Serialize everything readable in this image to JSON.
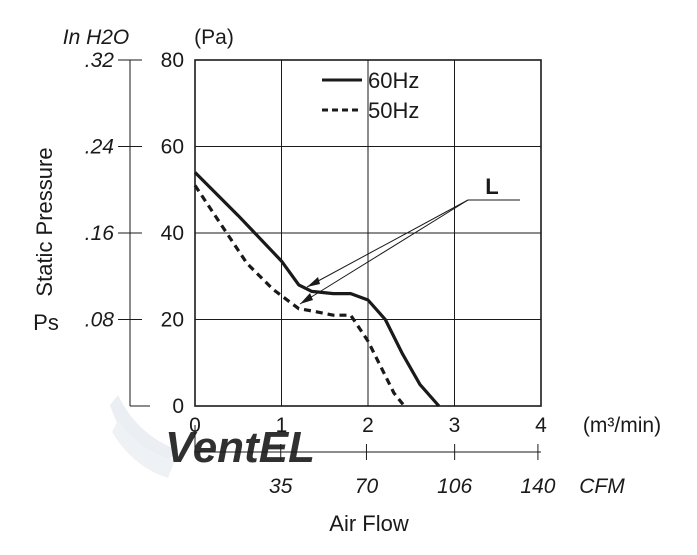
{
  "chart_data": {
    "type": "line",
    "ylabel": "Static Pressure",
    "ylabel_symbol": "Ps",
    "xlabel": "Air Flow",
    "y_unit": "(Pa)",
    "y2_unit": "In H2O",
    "x_unit": "(m³/min)",
    "x2_unit": "CFM",
    "xlim": [
      0,
      4
    ],
    "ylim": [
      0,
      80
    ],
    "grid": true,
    "legend_position": "top-right",
    "x_ticks": [
      "0",
      "1",
      "2",
      "3",
      "4"
    ],
    "y_ticks": [
      "0",
      "20",
      "40",
      "60",
      "80"
    ],
    "y2_ticks": [
      ".08",
      ".16",
      ".24",
      ".32"
    ],
    "x2_ticks": [
      "35",
      "70",
      "106",
      "140"
    ],
    "annotation": "L",
    "series": [
      {
        "name": "60Hz",
        "style": "solid",
        "x": [
          0,
          0.5,
          1.0,
          1.2,
          1.35,
          1.6,
          1.8,
          2.0,
          2.2,
          2.4,
          2.6,
          2.82
        ],
        "y": [
          54,
          44,
          33.5,
          28,
          26.5,
          26,
          26,
          24.5,
          20,
          12,
          5,
          0
        ]
      },
      {
        "name": "50Hz",
        "style": "dashed",
        "x": [
          0,
          0.3,
          0.6,
          0.9,
          1.1,
          1.2,
          1.35,
          1.6,
          1.8,
          2.0,
          2.2,
          2.3,
          2.42
        ],
        "y": [
          51,
          42,
          33,
          27,
          24,
          22.5,
          22,
          21,
          21,
          15,
          7,
          3,
          0
        ]
      }
    ]
  },
  "watermark": "VentEL",
  "colors": {
    "line": "#1a1a1a",
    "watermark": "#e8ecf0"
  }
}
